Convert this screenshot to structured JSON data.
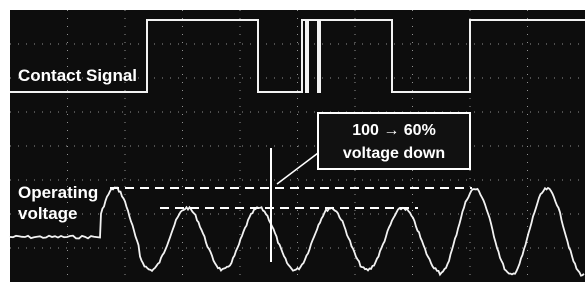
{
  "labels": {
    "contact_signal": "Contact Signal",
    "operating_voltage": [
      "Operating",
      "voltage"
    ]
  },
  "annotation": [
    "100 → 60%",
    "voltage down"
  ]
}
